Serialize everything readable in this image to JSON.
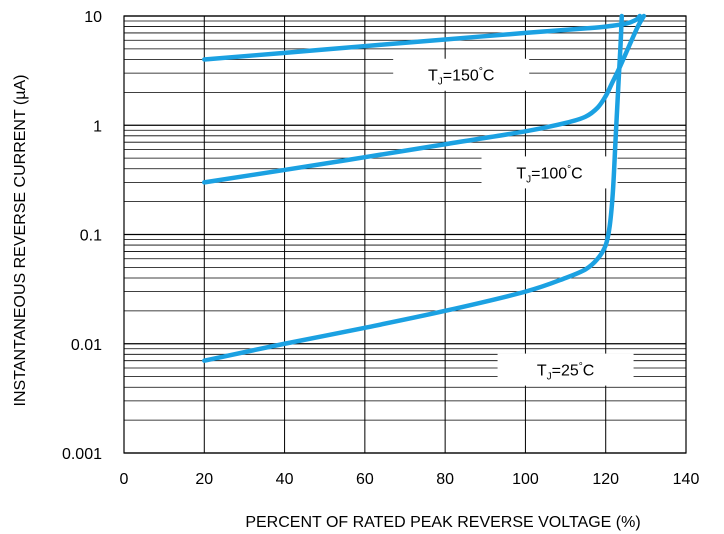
{
  "chart_data": {
    "type": "line",
    "xlabel": "PERCENT OF RATED PEAK REVERSE VOLTAGE (%)",
    "ylabel": "INSTANTANEOUS REVERSE CURRENT (µA)",
    "xlim": [
      0,
      140
    ],
    "ylim": [
      0.001,
      10
    ],
    "y_scale": "log",
    "grid": true,
    "x_ticks": [
      {
        "value": 0,
        "label": "0"
      },
      {
        "value": 20,
        "label": "20"
      },
      {
        "value": 40,
        "label": "40"
      },
      {
        "value": 60,
        "label": "60"
      },
      {
        "value": 80,
        "label": "80"
      },
      {
        "value": 100,
        "label": "100"
      },
      {
        "value": 120,
        "label": "120"
      },
      {
        "value": 140,
        "label": "140"
      }
    ],
    "y_ticks": [
      {
        "value": 0.001,
        "label": "0.001"
      },
      {
        "value": 0.01,
        "label": "0.01"
      },
      {
        "value": 0.1,
        "label": "0.1"
      },
      {
        "value": 1,
        "label": "1"
      },
      {
        "value": 10,
        "label": "10"
      }
    ],
    "series": [
      {
        "label_main": "T",
        "label_sub": "J",
        "label_eq": "=150",
        "label_deg": "°",
        "label_unit": "C",
        "label_at": {
          "x": 84,
          "y": 2.9
        },
        "points": [
          [
            20,
            4.0
          ],
          [
            40,
            4.6
          ],
          [
            60,
            5.3
          ],
          [
            80,
            6.1
          ],
          [
            100,
            7.0
          ],
          [
            115,
            7.7
          ],
          [
            120,
            8.0
          ],
          [
            125,
            8.5
          ],
          [
            127.5,
            9.2
          ],
          [
            128.5,
            10
          ]
        ]
      },
      {
        "label_main": "T",
        "label_sub": "J",
        "label_eq": "=100",
        "label_deg": "°",
        "label_unit": "C",
        "label_at": {
          "x": 106,
          "y": 0.37
        },
        "points": [
          [
            20,
            0.3
          ],
          [
            40,
            0.39
          ],
          [
            60,
            0.51
          ],
          [
            80,
            0.67
          ],
          [
            100,
            0.88
          ],
          [
            110,
            1.05
          ],
          [
            115,
            1.2
          ],
          [
            118,
            1.45
          ],
          [
            120,
            1.85
          ],
          [
            121.5,
            2.4
          ],
          [
            123.5,
            3.4
          ],
          [
            126,
            5.5
          ],
          [
            128,
            8.0
          ],
          [
            129.5,
            10
          ]
        ]
      },
      {
        "label_main": "T",
        "label_sub": "J",
        "label_eq": "=25",
        "label_deg": "°",
        "label_unit": "C",
        "label_at": {
          "x": 110,
          "y": 0.0058
        },
        "points": [
          [
            20,
            0.007
          ],
          [
            40,
            0.01
          ],
          [
            60,
            0.014
          ],
          [
            80,
            0.02
          ],
          [
            100,
            0.03
          ],
          [
            110,
            0.04
          ],
          [
            115,
            0.048
          ],
          [
            118,
            0.06
          ],
          [
            120,
            0.08
          ],
          [
            121,
            0.12
          ],
          [
            121.8,
            0.25
          ],
          [
            122.5,
            0.8
          ],
          [
            123.2,
            2.5
          ],
          [
            123.7,
            5.5
          ],
          [
            124,
            10
          ]
        ]
      }
    ],
    "colors": {
      "curve": "#1BA1E2",
      "grid": "#000000",
      "background": "#ffffff"
    }
  }
}
